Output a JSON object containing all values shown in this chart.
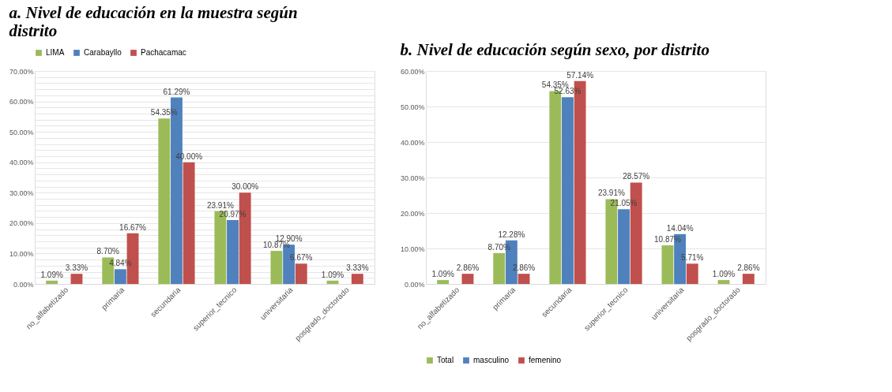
{
  "chart_data": [
    {
      "type": "bar",
      "title": "a. Nivel de educación en la muestra según distrito",
      "categories": [
        "no_alfabetizado",
        "primaria",
        "secundaria",
        "superior_tecnico",
        "universitaria",
        "posgrado_doctorado"
      ],
      "series": [
        {
          "name": "LIMA",
          "color": "#9bbb59",
          "values": [
            1.09,
            8.7,
            54.35,
            23.91,
            10.87,
            1.09
          ],
          "value_labels": [
            "1.09%",
            "8.70%",
            "54.35%",
            "23.91%",
            "10.87%",
            "1.09%"
          ]
        },
        {
          "name": "Carabayllo",
          "color": "#4f81bd",
          "values": [
            null,
            4.84,
            61.29,
            20.97,
            12.9,
            null
          ],
          "value_labels": [
            null,
            "4.84%",
            "61.29%",
            "20.97%",
            "12.90%",
            null
          ]
        },
        {
          "name": "Pachacamac",
          "color": "#c0504d",
          "values": [
            3.33,
            16.67,
            40.0,
            30.0,
            6.67,
            3.33
          ],
          "value_labels": [
            "3.33%",
            "16.67%",
            "40.00%",
            "30.00%",
            "6.67%",
            "3.33%"
          ]
        }
      ],
      "ylim": [
        0,
        70
      ],
      "yticks": [
        {
          "value": 0,
          "label": "0.00%"
        },
        {
          "value": 2,
          "label": null
        },
        {
          "value": 4,
          "label": null
        },
        {
          "value": 6,
          "label": null
        },
        {
          "value": 8,
          "label": null
        },
        {
          "value": 10,
          "label": "10.00%"
        },
        {
          "value": 12,
          "label": null
        },
        {
          "value": 14,
          "label": null
        },
        {
          "value": 16,
          "label": null
        },
        {
          "value": 18,
          "label": null
        },
        {
          "value": 20,
          "label": "20.00%"
        },
        {
          "value": 22,
          "label": null
        },
        {
          "value": 24,
          "label": null
        },
        {
          "value": 26,
          "label": null
        },
        {
          "value": 28,
          "label": null
        },
        {
          "value": 30,
          "label": "30.00%"
        },
        {
          "value": 32,
          "label": null
        },
        {
          "value": 34,
          "label": null
        },
        {
          "value": 36,
          "label": null
        },
        {
          "value": 38,
          "label": null
        },
        {
          "value": 40,
          "label": "40.00%"
        },
        {
          "value": 42,
          "label": null
        },
        {
          "value": 44,
          "label": null
        },
        {
          "value": 46,
          "label": null
        },
        {
          "value": 48,
          "label": null
        },
        {
          "value": 50,
          "label": "50.00%"
        },
        {
          "value": 52,
          "label": null
        },
        {
          "value": 54,
          "label": null
        },
        {
          "value": 56,
          "label": null
        },
        {
          "value": 58,
          "label": null
        },
        {
          "value": 60,
          "label": "60.00%"
        },
        {
          "value": 62,
          "label": null
        },
        {
          "value": 64,
          "label": null
        },
        {
          "value": 66,
          "label": null
        },
        {
          "value": 68,
          "label": null
        },
        {
          "value": 70,
          "label": "70.00%"
        }
      ],
      "grid": "y",
      "legend": "top"
    },
    {
      "type": "bar",
      "title": "b. Nivel de educación según sexo, por distrito",
      "categories": [
        "no_alfabetizado",
        "primaria",
        "secundaria",
        "superior_tecnico",
        "universitaria",
        "posgrado_doctorado"
      ],
      "series": [
        {
          "name": "Total",
          "color": "#9bbb59",
          "values": [
            1.09,
            8.7,
            54.35,
            23.91,
            10.87,
            1.09
          ],
          "value_labels": [
            "1.09%",
            "8.70%",
            "54.35%",
            "23.91%",
            "10.87%",
            "1.09%"
          ]
        },
        {
          "name": "masculino",
          "color": "#4f81bd",
          "values": [
            null,
            12.28,
            52.63,
            21.05,
            14.04,
            null
          ],
          "value_labels": [
            null,
            "12.28%",
            "52.63%",
            "21.05%",
            "14.04%",
            null
          ]
        },
        {
          "name": "femenino",
          "color": "#c0504d",
          "values": [
            2.86,
            2.86,
            57.14,
            28.57,
            5.71,
            2.86
          ],
          "value_labels": [
            "2.86%",
            "2.86%",
            "57.14%",
            "28.57%",
            "5.71%",
            "2.86%"
          ]
        }
      ],
      "ylim": [
        0,
        60
      ],
      "yticks": [
        {
          "value": 0,
          "label": "0.00%"
        },
        {
          "value": 10,
          "label": "10.00%"
        },
        {
          "value": 20,
          "label": "20.00%"
        },
        {
          "value": 30,
          "label": "30.00%"
        },
        {
          "value": 40,
          "label": "40.00%"
        },
        {
          "value": 50,
          "label": "50.00%"
        },
        {
          "value": 60,
          "label": "60.00%"
        }
      ],
      "grid": "y",
      "legend": "bottom"
    }
  ]
}
